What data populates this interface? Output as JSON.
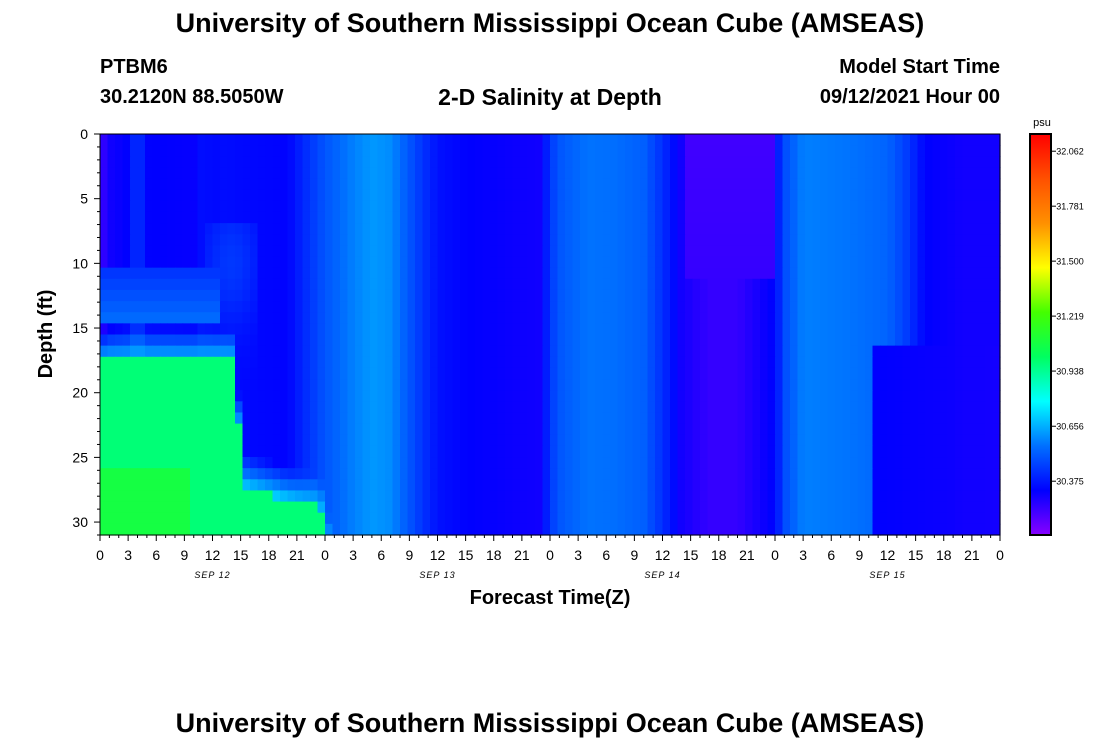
{
  "header": {
    "title": "University of Southern Mississippi Ocean Cube (AMSEAS)",
    "station_id": "PTBM6",
    "coordinates": "30.2120N  88.5050W",
    "chart_title": "2-D Salinity at Depth",
    "model_start_label": "Model Start Time",
    "model_start_value": "09/12/2021 Hour 00"
  },
  "footer": {
    "title": "University of Southern Mississippi Ocean Cube (AMSEAS)"
  },
  "chart_data": {
    "type": "heatmap",
    "title": "2-D Salinity at Depth",
    "xlabel": "Forecast Time(Z)",
    "ylabel": "Depth (ft)",
    "x_range_hours": [
      0,
      96
    ],
    "y_range_ft": [
      0,
      31
    ],
    "y_inverted": true,
    "x_tick_labels": [
      "0",
      "3",
      "6",
      "9",
      "12",
      "15",
      "18",
      "21",
      "0",
      "3",
      "6",
      "9",
      "12",
      "15",
      "18",
      "21",
      "0",
      "3",
      "6",
      "9",
      "12",
      "15",
      "18",
      "21",
      "0",
      "3",
      "6",
      "9",
      "12",
      "15",
      "18",
      "21",
      "0"
    ],
    "y_ticks": [
      0,
      5,
      10,
      15,
      20,
      25,
      30
    ],
    "day_labels": [
      {
        "text": "SEP 12",
        "hour": 12
      },
      {
        "text": "SEP 13",
        "hour": 36
      },
      {
        "text": "SEP 14",
        "hour": 60
      },
      {
        "text": "SEP 15",
        "hour": 84
      }
    ],
    "colorbar": {
      "unit": "psu",
      "min": 30.1,
      "max": 32.15,
      "ticks": [
        "32.062",
        "31.781",
        "31.500",
        "31.219",
        "30.938",
        "30.656",
        "30.375"
      ],
      "colors": [
        "#8800ff",
        "#0000ff",
        "#0070ff",
        "#00ffff",
        "#00ff60",
        "#44ff00",
        "#ffff00",
        "#ff9000",
        "#ff5000",
        "#ff0000"
      ]
    },
    "surface_profile_psu": [
      [
        0,
        30.22
      ],
      [
        1,
        30.3
      ],
      [
        3,
        30.33
      ],
      [
        4,
        30.45
      ],
      [
        5,
        30.33
      ],
      [
        10,
        30.32
      ],
      [
        11,
        30.36
      ],
      [
        12,
        30.34
      ],
      [
        13,
        30.35
      ],
      [
        20,
        30.33
      ],
      [
        22,
        30.42
      ],
      [
        24,
        30.5
      ],
      [
        27,
        30.58
      ],
      [
        29,
        30.62
      ],
      [
        31,
        30.6
      ],
      [
        34,
        30.45
      ],
      [
        36,
        30.36
      ],
      [
        39,
        30.33
      ],
      [
        47,
        30.3
      ],
      [
        48,
        30.44
      ],
      [
        49,
        30.5
      ],
      [
        52,
        30.56
      ],
      [
        55,
        30.55
      ],
      [
        58,
        30.52
      ],
      [
        60,
        30.42
      ],
      [
        62,
        30.3
      ],
      [
        65,
        30.24
      ],
      [
        68,
        30.24
      ],
      [
        72,
        30.34
      ],
      [
        73,
        30.48
      ],
      [
        75,
        30.58
      ],
      [
        80,
        30.56
      ],
      [
        84,
        30.53
      ],
      [
        86,
        30.45
      ],
      [
        88,
        30.33
      ],
      [
        92,
        30.3
      ],
      [
        96,
        30.3
      ]
    ],
    "bottom_layer": {
      "hours": [
        0,
        14
      ],
      "depth_top_ft": 17.5,
      "value_psu": 30.98,
      "deep_value_psu": 31.08
    }
  }
}
